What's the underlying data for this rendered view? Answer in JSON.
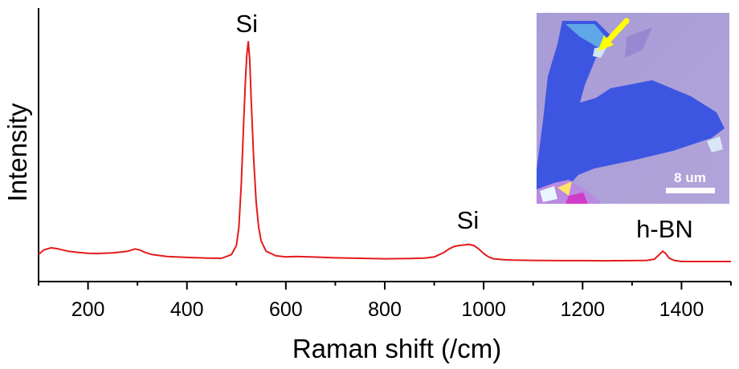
{
  "chart_data": {
    "type": "line",
    "xlabel": "Raman shift (/cm)",
    "ylabel": "Intensity",
    "xlim": [
      100,
      1500
    ],
    "x_ticks": [
      200,
      400,
      600,
      800,
      1000,
      1200,
      1400
    ],
    "y_ticks_shown": false,
    "grid": false,
    "series": [
      {
        "color": "#e41a1c",
        "x": [
          100,
          110,
          125,
          140,
          160,
          180,
          200,
          220,
          250,
          280,
          295,
          305,
          315,
          330,
          360,
          400,
          440,
          470,
          490,
          500,
          505,
          510,
          515,
          518,
          521,
          524,
          527,
          530,
          535,
          540,
          545,
          550,
          560,
          580,
          600,
          620,
          650,
          700,
          750,
          800,
          850,
          880,
          900,
          920,
          930,
          940,
          950,
          960,
          970,
          980,
          990,
          1000,
          1010,
          1020,
          1040,
          1060,
          1100,
          1150,
          1200,
          1250,
          1300,
          1330,
          1345,
          1355,
          1362,
          1368,
          1375,
          1385,
          1400,
          1450,
          1500
        ],
        "y": [
          0.03,
          0.05,
          0.06,
          0.055,
          0.045,
          0.04,
          0.036,
          0.035,
          0.038,
          0.045,
          0.055,
          0.05,
          0.04,
          0.03,
          0.022,
          0.018,
          0.015,
          0.014,
          0.03,
          0.07,
          0.15,
          0.34,
          0.62,
          0.78,
          0.9,
          0.96,
          0.88,
          0.7,
          0.45,
          0.26,
          0.15,
          0.09,
          0.045,
          0.025,
          0.02,
          0.022,
          0.02,
          0.016,
          0.014,
          0.012,
          0.013,
          0.015,
          0.02,
          0.04,
          0.055,
          0.065,
          0.07,
          0.072,
          0.075,
          0.07,
          0.055,
          0.035,
          0.02,
          0.012,
          0.008,
          0.006,
          0.005,
          0.004,
          0.004,
          0.003,
          0.004,
          0.005,
          0.01,
          0.03,
          0.045,
          0.035,
          0.015,
          0.005,
          0.0,
          0.0,
          0.0
        ]
      }
    ],
    "annotations": [
      {
        "text": "Si",
        "x": 521
      },
      {
        "text": "Si",
        "x": 968
      },
      {
        "text": "h-BN",
        "x": 1366
      }
    ]
  },
  "inset": {
    "kind": "optical microscope image",
    "scale_bar_label": "8 um",
    "arrow_color": "#ffff00"
  }
}
